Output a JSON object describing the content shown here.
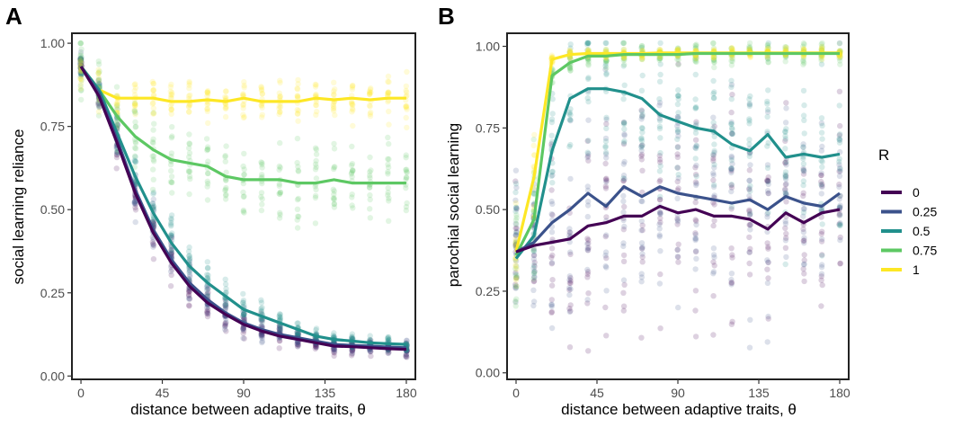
{
  "chart_data": [
    {
      "type": "line",
      "panel_label": "A",
      "xlabel": "distance between adaptive traits, θ",
      "ylabel": "social learning reliance",
      "xlim": [
        -5,
        185
      ],
      "ylim": [
        -0.01,
        1.03
      ],
      "x_ticks": [
        0,
        45,
        90,
        135,
        180
      ],
      "y_ticks": [
        0.0,
        0.25,
        0.5,
        0.75,
        1.0
      ],
      "y_tick_labels": [
        "0.00",
        "0.25",
        "0.50",
        "0.75",
        "1.00"
      ],
      "grid": false,
      "x": [
        0,
        10,
        20,
        30,
        40,
        50,
        60,
        70,
        80,
        90,
        100,
        110,
        120,
        130,
        140,
        150,
        160,
        170,
        180
      ],
      "series": [
        {
          "name": "0",
          "color": "#440154",
          "values": [
            0.93,
            0.84,
            0.7,
            0.55,
            0.43,
            0.34,
            0.27,
            0.22,
            0.185,
            0.155,
            0.135,
            0.12,
            0.11,
            0.1,
            0.09,
            0.088,
            0.085,
            0.082,
            0.08
          ]
        },
        {
          "name": "0.25",
          "color": "#3b528b",
          "values": [
            0.93,
            0.85,
            0.71,
            0.56,
            0.44,
            0.35,
            0.28,
            0.23,
            0.19,
            0.16,
            0.14,
            0.125,
            0.115,
            0.105,
            0.095,
            0.092,
            0.09,
            0.087,
            0.085
          ]
        },
        {
          "name": "0.5",
          "color": "#21908c",
          "values": [
            0.93,
            0.86,
            0.73,
            0.6,
            0.49,
            0.4,
            0.33,
            0.28,
            0.24,
            0.2,
            0.18,
            0.16,
            0.14,
            0.12,
            0.11,
            0.105,
            0.1,
            0.097,
            0.095
          ]
        },
        {
          "name": "0.75",
          "color": "#5dc863",
          "values": [
            0.93,
            0.86,
            0.78,
            0.72,
            0.68,
            0.65,
            0.64,
            0.63,
            0.6,
            0.59,
            0.59,
            0.59,
            0.58,
            0.58,
            0.59,
            0.58,
            0.58,
            0.58,
            0.58
          ]
        },
        {
          "name": "1",
          "color": "#fde725",
          "values": [
            0.93,
            0.86,
            0.835,
            0.835,
            0.835,
            0.825,
            0.825,
            0.83,
            0.825,
            0.835,
            0.825,
            0.825,
            0.825,
            0.835,
            0.83,
            0.835,
            0.83,
            0.835,
            0.835
          ]
        }
      ]
    },
    {
      "type": "line",
      "panel_label": "B",
      "xlabel": "distance between adaptive traits, θ",
      "ylabel": "parochial social learning",
      "xlim": [
        -5,
        185
      ],
      "ylim": [
        -0.02,
        1.04
      ],
      "x_ticks": [
        0,
        45,
        90,
        135,
        180
      ],
      "y_ticks": [
        0.0,
        0.25,
        0.5,
        0.75,
        1.0
      ],
      "y_tick_labels": [
        "0.00",
        "0.25",
        "0.50",
        "0.75",
        "1.00"
      ],
      "grid": false,
      "x": [
        0,
        10,
        20,
        30,
        40,
        50,
        60,
        70,
        80,
        90,
        100,
        110,
        120,
        130,
        140,
        150,
        160,
        170,
        180
      ],
      "series": [
        {
          "name": "0",
          "color": "#440154",
          "values": [
            0.37,
            0.39,
            0.4,
            0.41,
            0.45,
            0.46,
            0.48,
            0.48,
            0.51,
            0.49,
            0.5,
            0.48,
            0.48,
            0.47,
            0.44,
            0.49,
            0.46,
            0.49,
            0.5
          ]
        },
        {
          "name": "0.25",
          "color": "#3b528b",
          "values": [
            0.37,
            0.4,
            0.46,
            0.5,
            0.55,
            0.51,
            0.57,
            0.54,
            0.57,
            0.55,
            0.54,
            0.53,
            0.52,
            0.53,
            0.5,
            0.54,
            0.52,
            0.51,
            0.55
          ]
        },
        {
          "name": "0.5",
          "color": "#21908c",
          "values": [
            0.35,
            0.42,
            0.68,
            0.84,
            0.87,
            0.87,
            0.86,
            0.84,
            0.79,
            0.77,
            0.75,
            0.74,
            0.7,
            0.68,
            0.73,
            0.66,
            0.67,
            0.66,
            0.67
          ]
        },
        {
          "name": "0.75",
          "color": "#5dc863",
          "values": [
            0.36,
            0.47,
            0.91,
            0.95,
            0.97,
            0.97,
            0.975,
            0.975,
            0.975,
            0.975,
            0.978,
            0.978,
            0.978,
            0.978,
            0.978,
            0.978,
            0.978,
            0.978,
            0.978
          ]
        },
        {
          "name": "1",
          "color": "#fde725",
          "values": [
            0.37,
            0.6,
            0.96,
            0.975,
            0.978,
            0.978,
            0.978,
            0.978,
            0.98,
            0.98,
            0.98,
            0.98,
            0.98,
            0.98,
            0.98,
            0.98,
            0.98,
            0.98,
            0.98
          ]
        }
      ]
    }
  ],
  "legend": {
    "title": "R",
    "position": "right",
    "items": [
      {
        "label": "0",
        "color": "#440154"
      },
      {
        "label": "0.25",
        "color": "#3b528b"
      },
      {
        "label": "0.5",
        "color": "#21908c"
      },
      {
        "label": "0.75",
        "color": "#5dc863"
      },
      {
        "label": "1",
        "color": "#fde725"
      }
    ]
  }
}
